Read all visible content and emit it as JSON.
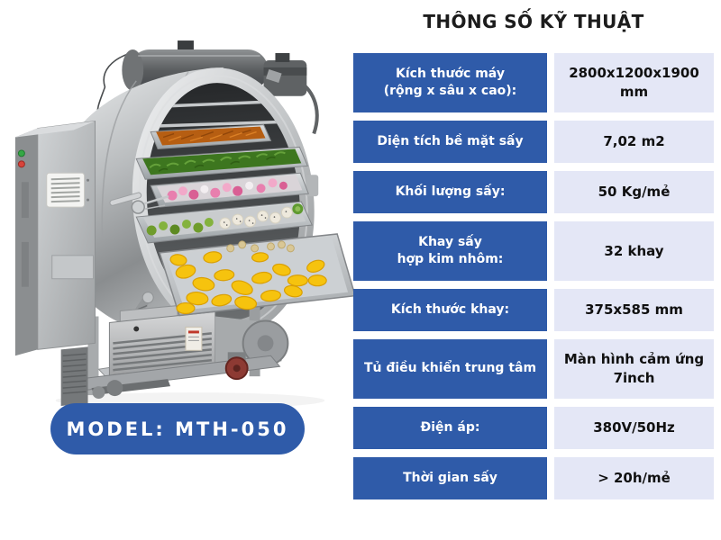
{
  "header": {
    "title": "THÔNG SỐ KỸ THUẬT"
  },
  "model_badge": {
    "label": "MODEL: MTH-050"
  },
  "colors": {
    "accent_blue": "#2f5ba9",
    "value_cell_bg": "#e4e7f6",
    "title_text": "#1c1c1c",
    "value_text": "#101010",
    "label_text": "#ffffff"
  },
  "specs": [
    {
      "label": "Kích thước máy\n(rộng x sâu x cao):",
      "value": "2800x1200x1900 mm",
      "tall": true
    },
    {
      "label": "Diện tích bề mặt sấy",
      "value": "7,02 m2",
      "tall": false
    },
    {
      "label": "Khối lượng sấy:",
      "value": "50 Kg/mẻ",
      "tall": false
    },
    {
      "label": "Khay sấy\nhợp kim nhôm:",
      "value": "32 khay",
      "tall": true
    },
    {
      "label": "Kích thước khay:",
      "value": "375x585 mm",
      "tall": false
    },
    {
      "label": "Tủ điều khiển trung tâm",
      "value": "Màn hình cảm ứng 7inch",
      "tall": true
    },
    {
      "label": "Điện áp:",
      "value": "380V/50Hz",
      "tall": false
    },
    {
      "label": "Thời gian sấy",
      "value": "> 20h/mẻ",
      "tall": false
    }
  ]
}
